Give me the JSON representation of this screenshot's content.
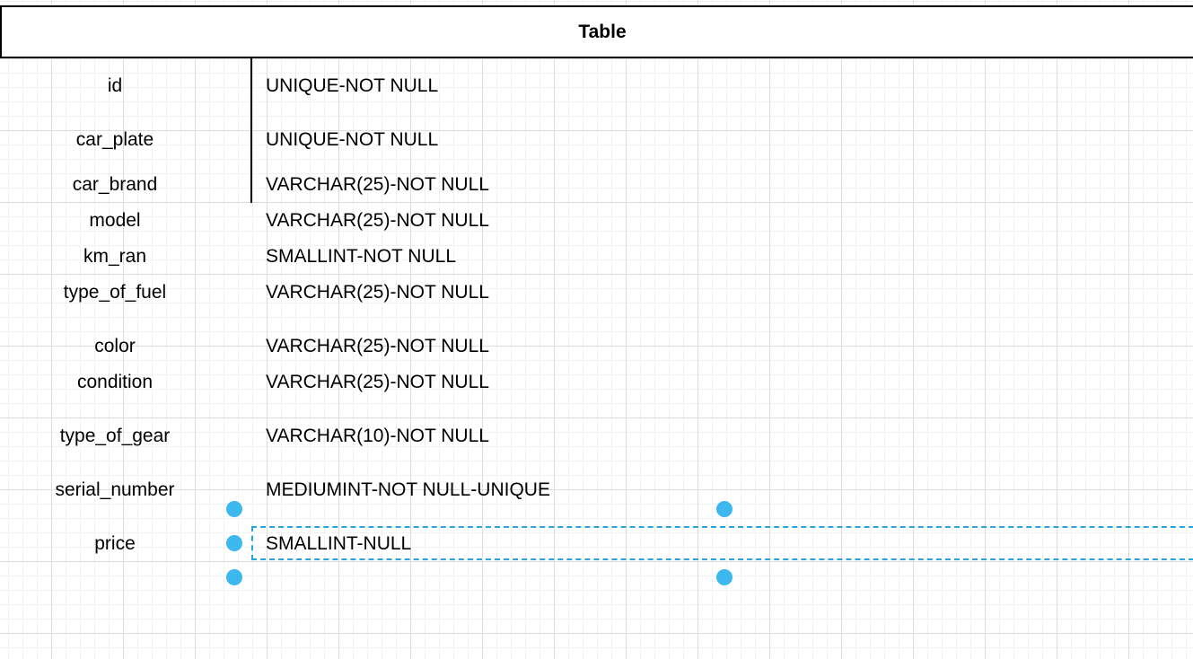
{
  "table": {
    "title": "Table",
    "fields": [
      {
        "name": "id",
        "type": "UNIQUE-NOT NULL"
      },
      {
        "name": "car_plate",
        "type": "UNIQUE-NOT NULL"
      },
      {
        "name": "car_brand",
        "type": "VARCHAR(25)-NOT NULL"
      },
      {
        "name": "model",
        "type": "VARCHAR(25)-NOT NULL"
      },
      {
        "name": "km_ran",
        "type": "SMALLINT-NOT NULL"
      },
      {
        "name": "type_of_fuel",
        "type": "VARCHAR(25)-NOT NULL"
      },
      {
        "name": "color",
        "type": "VARCHAR(25)-NOT NULL"
      },
      {
        "name": "condition",
        "type": "VARCHAR(25)-NOT NULL"
      },
      {
        "name": "type_of_gear",
        "type": "VARCHAR(10)-NOT NULL"
      },
      {
        "name": "serial_number",
        "type": "MEDIUMINT-NOT NULL-UNIQUE"
      },
      {
        "name": "price",
        "type": "SMALLINT-NULL"
      }
    ]
  },
  "colors": {
    "selection": "#29a3dd",
    "handle": "#3cb8ef"
  },
  "selected_field": "price"
}
